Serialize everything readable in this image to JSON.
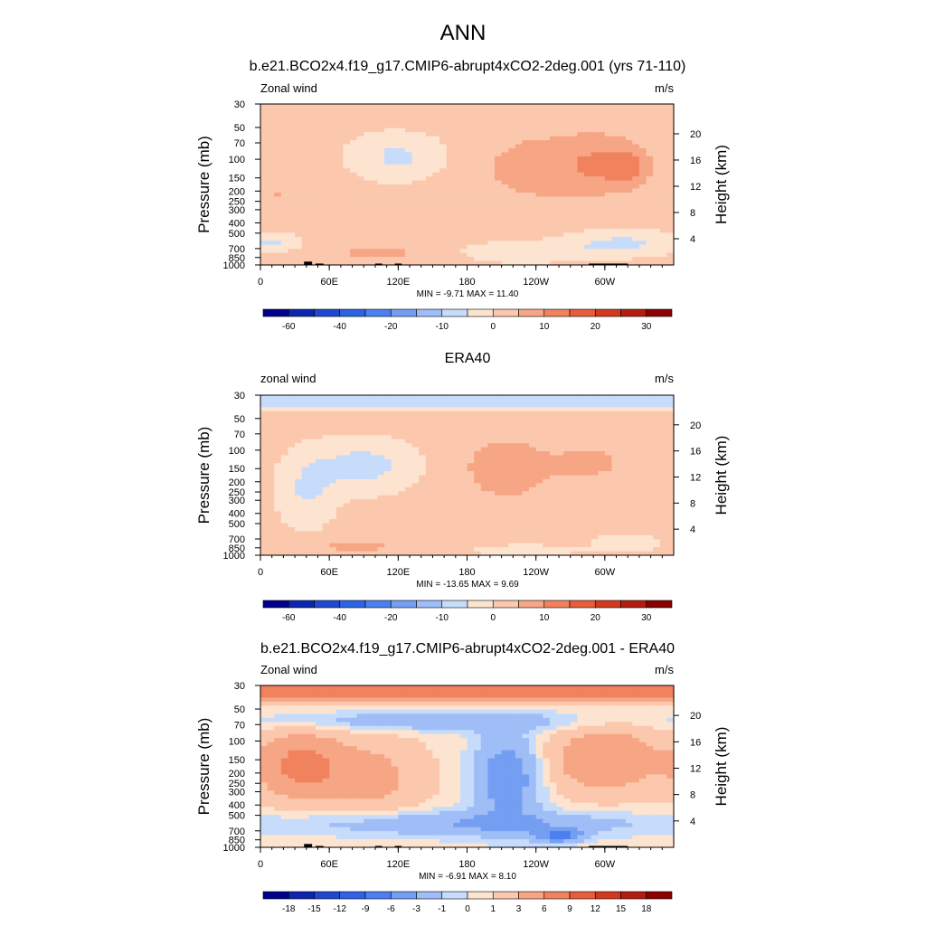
{
  "page_title": "ANN",
  "chart_data": [
    {
      "type": "heatmap",
      "title": "b.e21.BCO2x4.f19_g17.CMIP6-abrupt4xCO2-2deg.001 (yrs 71-110)",
      "left_label": "Zonal wind",
      "units": "m/s",
      "ylabel": "Pressure (mb)",
      "ylabel_right": "Height (km)",
      "x_ticks": [
        "0",
        "60E",
        "120E",
        "180",
        "120W",
        "60W"
      ],
      "p_ticks": [
        "30",
        "50",
        "70",
        "100",
        "150",
        "200",
        "250",
        "300",
        "400",
        "500",
        "700",
        "850",
        "1000"
      ],
      "z_ticks": [
        "20",
        "16",
        "12",
        "8",
        "4"
      ],
      "stats": "MIN = -9.71  MAX = 11.40",
      "colorbar_labels": [
        "-60",
        "-40",
        "-20",
        "-10",
        "0",
        "10",
        "20",
        "30"
      ],
      "colorbar_levels": [
        -70,
        -60,
        -50,
        -40,
        -30,
        -20,
        -15,
        -10,
        -5,
        0,
        5,
        10,
        15,
        20,
        25,
        30,
        35
      ],
      "fill_min": -9.71,
      "fill_max": 11.4,
      "background_value": 2,
      "topography": true,
      "features": [
        {
          "lon": 120,
          "p": 95,
          "dlon": 42,
          "dlogp": 0.22,
          "v": -6
        },
        {
          "lon": 245,
          "p": 120,
          "dlon": 60,
          "dlogp": 0.35,
          "v": 7
        },
        {
          "lon": 300,
          "p": 110,
          "dlon": 35,
          "dlogp": 0.25,
          "v": 9
        },
        {
          "lon": 320,
          "p": 120,
          "dlon": 14,
          "dlogp": 0.13,
          "v": 11.4
        },
        {
          "lon": 15,
          "p": 220,
          "dlon": 20,
          "dlogp": 0.22,
          "v": 5
        },
        {
          "lon": 110,
          "p": 760,
          "dlon": 65,
          "dlogp": 0.09,
          "v": 6
        },
        {
          "lon": 225,
          "p": 760,
          "dlon": 65,
          "dlogp": 0.1,
          "v": -4
        },
        {
          "lon": 315,
          "p": 620,
          "dlon": 50,
          "dlogp": 0.12,
          "v": -6
        },
        {
          "lon": 15,
          "p": 620,
          "dlon": 20,
          "dlogp": 0.08,
          "v": -4
        }
      ]
    },
    {
      "type": "heatmap",
      "title": "ERA40",
      "left_label": "zonal wind",
      "units": "m/s",
      "ylabel": "Pressure (mb)",
      "ylabel_right": "Height (km)",
      "x_ticks": [
        "0",
        "60E",
        "120E",
        "180",
        "120W",
        "60W"
      ],
      "p_ticks": [
        "30",
        "50",
        "70",
        "100",
        "150",
        "200",
        "250",
        "300",
        "400",
        "500",
        "700",
        "850",
        "1000"
      ],
      "z_ticks": [
        "20",
        "16",
        "12",
        "8",
        "4"
      ],
      "stats": "MIN = -13.65  MAX =  9.69",
      "colorbar_labels": [
        "-60",
        "-40",
        "-20",
        "-10",
        "0",
        "10",
        "20",
        "30"
      ],
      "colorbar_levels": [
        -70,
        -60,
        -50,
        -40,
        -30,
        -20,
        -15,
        -10,
        -5,
        0,
        5,
        10,
        15,
        20,
        25,
        30,
        35
      ],
      "fill_min": -13.65,
      "fill_max": 9.69,
      "background_value": 2,
      "topography": false,
      "features": [
        {
          "band_p_max": 42,
          "v": -6
        },
        {
          "lon": 90,
          "p": 140,
          "dlon": 45,
          "dlogp": 0.25,
          "v": -7
        },
        {
          "lon": 40,
          "p": 250,
          "dlon": 25,
          "dlogp": 0.35,
          "v": -5
        },
        {
          "lon": 215,
          "p": 150,
          "dlon": 40,
          "dlogp": 0.3,
          "v": 8
        },
        {
          "lon": 290,
          "p": 130,
          "dlon": 35,
          "dlogp": 0.2,
          "v": 6
        },
        {
          "lon": 80,
          "p": 820,
          "dlon": 55,
          "dlogp": 0.08,
          "v": 6
        },
        {
          "lon": 230,
          "p": 900,
          "dlon": 45,
          "dlogp": 0.05,
          "v": -4
        },
        {
          "lon": 320,
          "p": 770,
          "dlon": 28,
          "dlogp": 0.08,
          "v": -5
        }
      ]
    },
    {
      "type": "heatmap",
      "title": "b.e21.BCO2x4.f19_g17.CMIP6-abrupt4xCO2-2deg.001 - ERA40",
      "left_label": "Zonal wind",
      "units": "m/s",
      "ylabel": "Pressure (mb)",
      "ylabel_right": "Height (km)",
      "x_ticks": [
        "0",
        "60E",
        "120E",
        "180",
        "120W",
        "60W"
      ],
      "p_ticks": [
        "30",
        "50",
        "70",
        "100",
        "150",
        "200",
        "250",
        "300",
        "400",
        "500",
        "700",
        "850",
        "1000"
      ],
      "z_ticks": [
        "20",
        "16",
        "12",
        "8",
        "4"
      ],
      "stats": "MIN = -6.91  MAX =  8.10",
      "colorbar_labels": [
        "-18",
        "-15",
        "-12",
        "-9",
        "-6",
        "-3",
        "-1",
        "0",
        "1",
        "3",
        "6",
        "9",
        "12",
        "15",
        "18"
      ],
      "colorbar_levels": [
        -21,
        -18,
        -15,
        -12,
        -9,
        -6,
        -3,
        -1,
        0,
        1,
        3,
        6,
        9,
        12,
        15,
        18,
        21
      ],
      "fill_min": -6.91,
      "fill_max": 8.1,
      "background_value": 0.5,
      "topography": true,
      "features": [
        {
          "band_p_max": 42,
          "v": 7
        },
        {
          "lon": 150,
          "p": 65,
          "dlon": 150,
          "dlogp": 0.09,
          "v": -2.5
        },
        {
          "lon": 35,
          "p": 170,
          "dlon": 35,
          "dlogp": 0.3,
          "v": 7
        },
        {
          "lon": 95,
          "p": 220,
          "dlon": 45,
          "dlogp": 0.35,
          "v": 4
        },
        {
          "lon": 215,
          "p": 220,
          "dlon": 28,
          "dlogp": 0.4,
          "v": -5
        },
        {
          "lon": 300,
          "p": 150,
          "dlon": 45,
          "dlogp": 0.3,
          "v": 6
        },
        {
          "lon": 180,
          "p": 600,
          "dlon": 160,
          "dlogp": 0.12,
          "v": -3
        },
        {
          "lon": 260,
          "p": 780,
          "dlon": 20,
          "dlogp": 0.06,
          "v": -6.5
        }
      ]
    }
  ]
}
